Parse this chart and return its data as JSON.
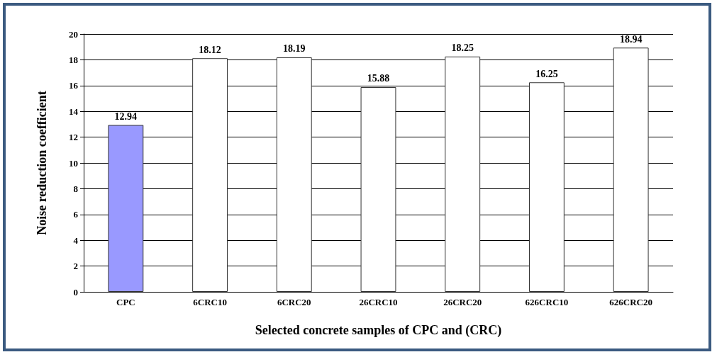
{
  "chart_data": {
    "type": "bar",
    "xlabel": "Selected concrete samples of CPC and (CRC)",
    "ylabel": "Noise reduction coefficient",
    "categories": [
      "CPC",
      "6CRC10",
      "6CRC20",
      "26CRC10",
      "26CRC20",
      "626CRC10",
      "626CRC20"
    ],
    "values": [
      12.94,
      18.12,
      18.19,
      15.88,
      18.25,
      16.25,
      18.94
    ],
    "colors": [
      "#9999ff",
      "#ffffff",
      "#ffffff",
      "#ffffff",
      "#ffffff",
      "#ffffff",
      "#ffffff"
    ],
    "ylim": [
      0,
      20
    ],
    "yticks": [
      0,
      2,
      4,
      6,
      8,
      10,
      12,
      14,
      16,
      18,
      20
    ],
    "grid": "y",
    "data_labels": true
  }
}
